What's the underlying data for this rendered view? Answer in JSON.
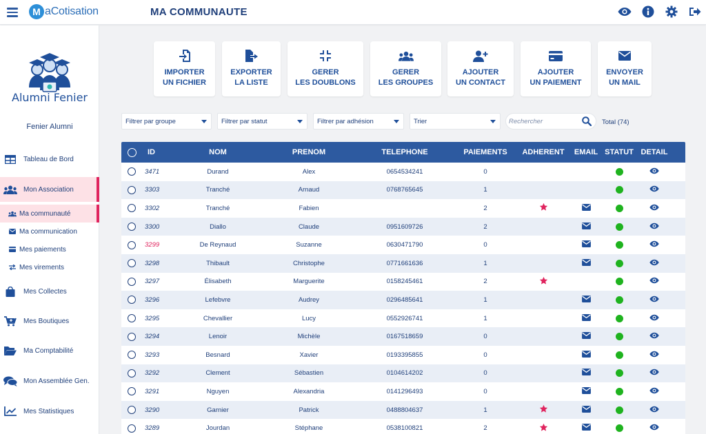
{
  "app": {
    "logo_mark": "M",
    "logo_text": "aCotisation",
    "page_title": "MA COMMUNAUTE"
  },
  "topbar": {
    "icons": [
      "eye-icon",
      "info-icon",
      "gear-icon",
      "logout-icon"
    ]
  },
  "sidebar": {
    "org_logo_text": "Alumni Fenier",
    "org_name": "Fenier Alumni",
    "items": [
      {
        "label": "Tableau de Bord",
        "icon": "dashboard-icon"
      },
      {
        "label": "Mon Association",
        "icon": "users-icon"
      },
      {
        "label": "Ma communauté",
        "icon": "users-icon"
      },
      {
        "label": "Ma communication",
        "icon": "envelope-icon"
      },
      {
        "label": "Mes paiements",
        "icon": "credit-card-icon"
      },
      {
        "label": "Mes virements",
        "icon": "transfer-icon"
      },
      {
        "label": "Mes Collectes",
        "icon": "shopping-bag-icon"
      },
      {
        "label": "Mes Boutiques",
        "icon": "cart-plus-icon"
      },
      {
        "label": "Ma Comptabilité",
        "icon": "folder-icon"
      },
      {
        "label": "Mon Assemblée Gen.",
        "icon": "comments-icon"
      },
      {
        "label": "Mes Statistiques",
        "icon": "chart-icon"
      }
    ]
  },
  "actions": [
    {
      "line1": "IMPORTER",
      "line2": "UN FICHIER",
      "icon": "import-icon"
    },
    {
      "line1": "EXPORTER",
      "line2": "LA LISTE",
      "icon": "export-icon"
    },
    {
      "line1": "GERER",
      "line2": "LES DOUBLONS",
      "icon": "compress-icon"
    },
    {
      "line1": "GERER",
      "line2": "LES GROUPES",
      "icon": "users-icon"
    },
    {
      "line1": "AJOUTER",
      "line2": "UN CONTACT",
      "icon": "user-plus-icon"
    },
    {
      "line1": "AJOUTER",
      "line2": "UN PAIEMENT",
      "icon": "credit-card-icon"
    },
    {
      "line1": "ENVOYER",
      "line2": "UN MAIL",
      "icon": "envelope-icon"
    }
  ],
  "filters": {
    "group": "Filtrer par groupe",
    "status": "Filtrer par statut",
    "adhesion": "Filtrer par adhésion",
    "sort": "Trier",
    "search_placeholder": "Rechercher",
    "total": "Total (74)"
  },
  "table": {
    "headers": {
      "id": "ID",
      "nom": "NOM",
      "prenom": "PRENOM",
      "telephone": "TELEPHONE",
      "paiements": "PAIEMENTS",
      "adherent": "ADHERENT",
      "email": "EMAIL",
      "statut": "STATUT",
      "detail": "DETAIL"
    },
    "colors": {
      "header": "#2d5aa0",
      "status_active": "#1fb31f",
      "adherent_star": "#e0245e",
      "id_highlight": "#e0245e"
    },
    "rows": [
      {
        "id": "3471",
        "nom": "Durand",
        "prenom": "Alex",
        "telephone": "0654534241",
        "paiements": "0",
        "adherent": false,
        "email": false,
        "id_highlight": false
      },
      {
        "id": "3303",
        "nom": "Tranché",
        "prenom": "Arnaud",
        "telephone": "0768765645",
        "paiements": "1",
        "adherent": false,
        "email": false,
        "id_highlight": false
      },
      {
        "id": "3302",
        "nom": "Tranché",
        "prenom": "Fabien",
        "telephone": "",
        "paiements": "2",
        "adherent": true,
        "email": true,
        "id_highlight": false
      },
      {
        "id": "3300",
        "nom": "Diallo",
        "prenom": "Claude",
        "telephone": "0951609726",
        "paiements": "2",
        "adherent": false,
        "email": true,
        "id_highlight": false
      },
      {
        "id": "3299",
        "nom": "De Reynaud",
        "prenom": "Suzanne",
        "telephone": "0630471790",
        "paiements": "0",
        "adherent": false,
        "email": true,
        "id_highlight": true
      },
      {
        "id": "3298",
        "nom": "Thibault",
        "prenom": "Christophe",
        "telephone": "0771661636",
        "paiements": "1",
        "adherent": false,
        "email": true,
        "id_highlight": false
      },
      {
        "id": "3297",
        "nom": "Élisabeth",
        "prenom": "Marguerite",
        "telephone": "0158245461",
        "paiements": "2",
        "adherent": true,
        "email": false,
        "id_highlight": false
      },
      {
        "id": "3296",
        "nom": "Lefebvre",
        "prenom": "Audrey",
        "telephone": "0296485641",
        "paiements": "1",
        "adherent": false,
        "email": true,
        "id_highlight": false
      },
      {
        "id": "3295",
        "nom": "Chevallier",
        "prenom": "Lucy",
        "telephone": "0552926741",
        "paiements": "1",
        "adherent": false,
        "email": true,
        "id_highlight": false
      },
      {
        "id": "3294",
        "nom": "Lenoir",
        "prenom": "Michèle",
        "telephone": "0167518659",
        "paiements": "0",
        "adherent": false,
        "email": true,
        "id_highlight": false
      },
      {
        "id": "3293",
        "nom": "Besnard",
        "prenom": "Xavier",
        "telephone": "0193395855",
        "paiements": "0",
        "adherent": false,
        "email": true,
        "id_highlight": false
      },
      {
        "id": "3292",
        "nom": "Clement",
        "prenom": "Sébastien",
        "telephone": "0104614202",
        "paiements": "0",
        "adherent": false,
        "email": true,
        "id_highlight": false
      },
      {
        "id": "3291",
        "nom": "Nguyen",
        "prenom": "Alexandria",
        "telephone": "0141296493",
        "paiements": "0",
        "adherent": false,
        "email": true,
        "id_highlight": false
      },
      {
        "id": "3290",
        "nom": "Garnier",
        "prenom": "Patrick",
        "telephone": "0488804637",
        "paiements": "1",
        "adherent": true,
        "email": true,
        "id_highlight": false
      },
      {
        "id": "3289",
        "nom": "Jourdan",
        "prenom": "Stéphane",
        "telephone": "0538100821",
        "paiements": "2",
        "adherent": true,
        "email": true,
        "id_highlight": false
      }
    ]
  }
}
